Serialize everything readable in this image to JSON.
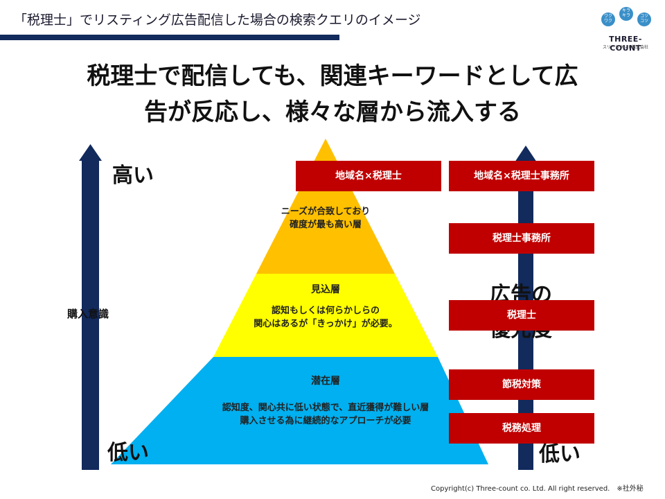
{
  "header": {
    "title": "「税理士」でリスティング広告配信した場合の検索クエリのイメージ"
  },
  "logo": {
    "bubbles": [
      "ワク\nワク",
      "キラ\nキラ",
      "コツ\nコツ"
    ],
    "name": "THREE-COUNT",
    "sub": "スリーカウント株式会社"
  },
  "headline": {
    "line1": "税理士で配信しても、関連キーワードとして広",
    "line2": "告が反応し、様々な層から流入する"
  },
  "axis_left": {
    "high_label": "高い",
    "low_label": "低い",
    "axis_label": "購入意識"
  },
  "axis_right": {
    "label_line1": "広告の",
    "label_line2": "優先度",
    "low_label": "低い"
  },
  "pyramid": {
    "top": {
      "line1": "ニーズが合致しており",
      "line2": "確度が最も高い層",
      "color": "#ffc000"
    },
    "middle": {
      "title": "見込層",
      "line1": "認知もしくは何らかしらの",
      "line2": "関心はあるが「きっかけ」が必要。",
      "color": "#ffff00"
    },
    "bottom": {
      "title": "潜在層",
      "line1": "認知度、関心共に低い状態で、直近獲得が難しい層",
      "line2": "購入させる為に継続的なアプローチが必要",
      "color": "#00b0f0"
    }
  },
  "keywords": {
    "top_left": "地域名×税理士",
    "top_right": "地域名×税理士事務所",
    "k2": "税理士事務所",
    "k3": "税理士",
    "k4": "節税対策",
    "k5": "税務処理"
  },
  "colors": {
    "navy": "#122a5c",
    "red": "#c00000"
  },
  "footer": {
    "copyright": "Copyright(c) Three-count co. Ltd. All right reserved.　※社外秘"
  }
}
